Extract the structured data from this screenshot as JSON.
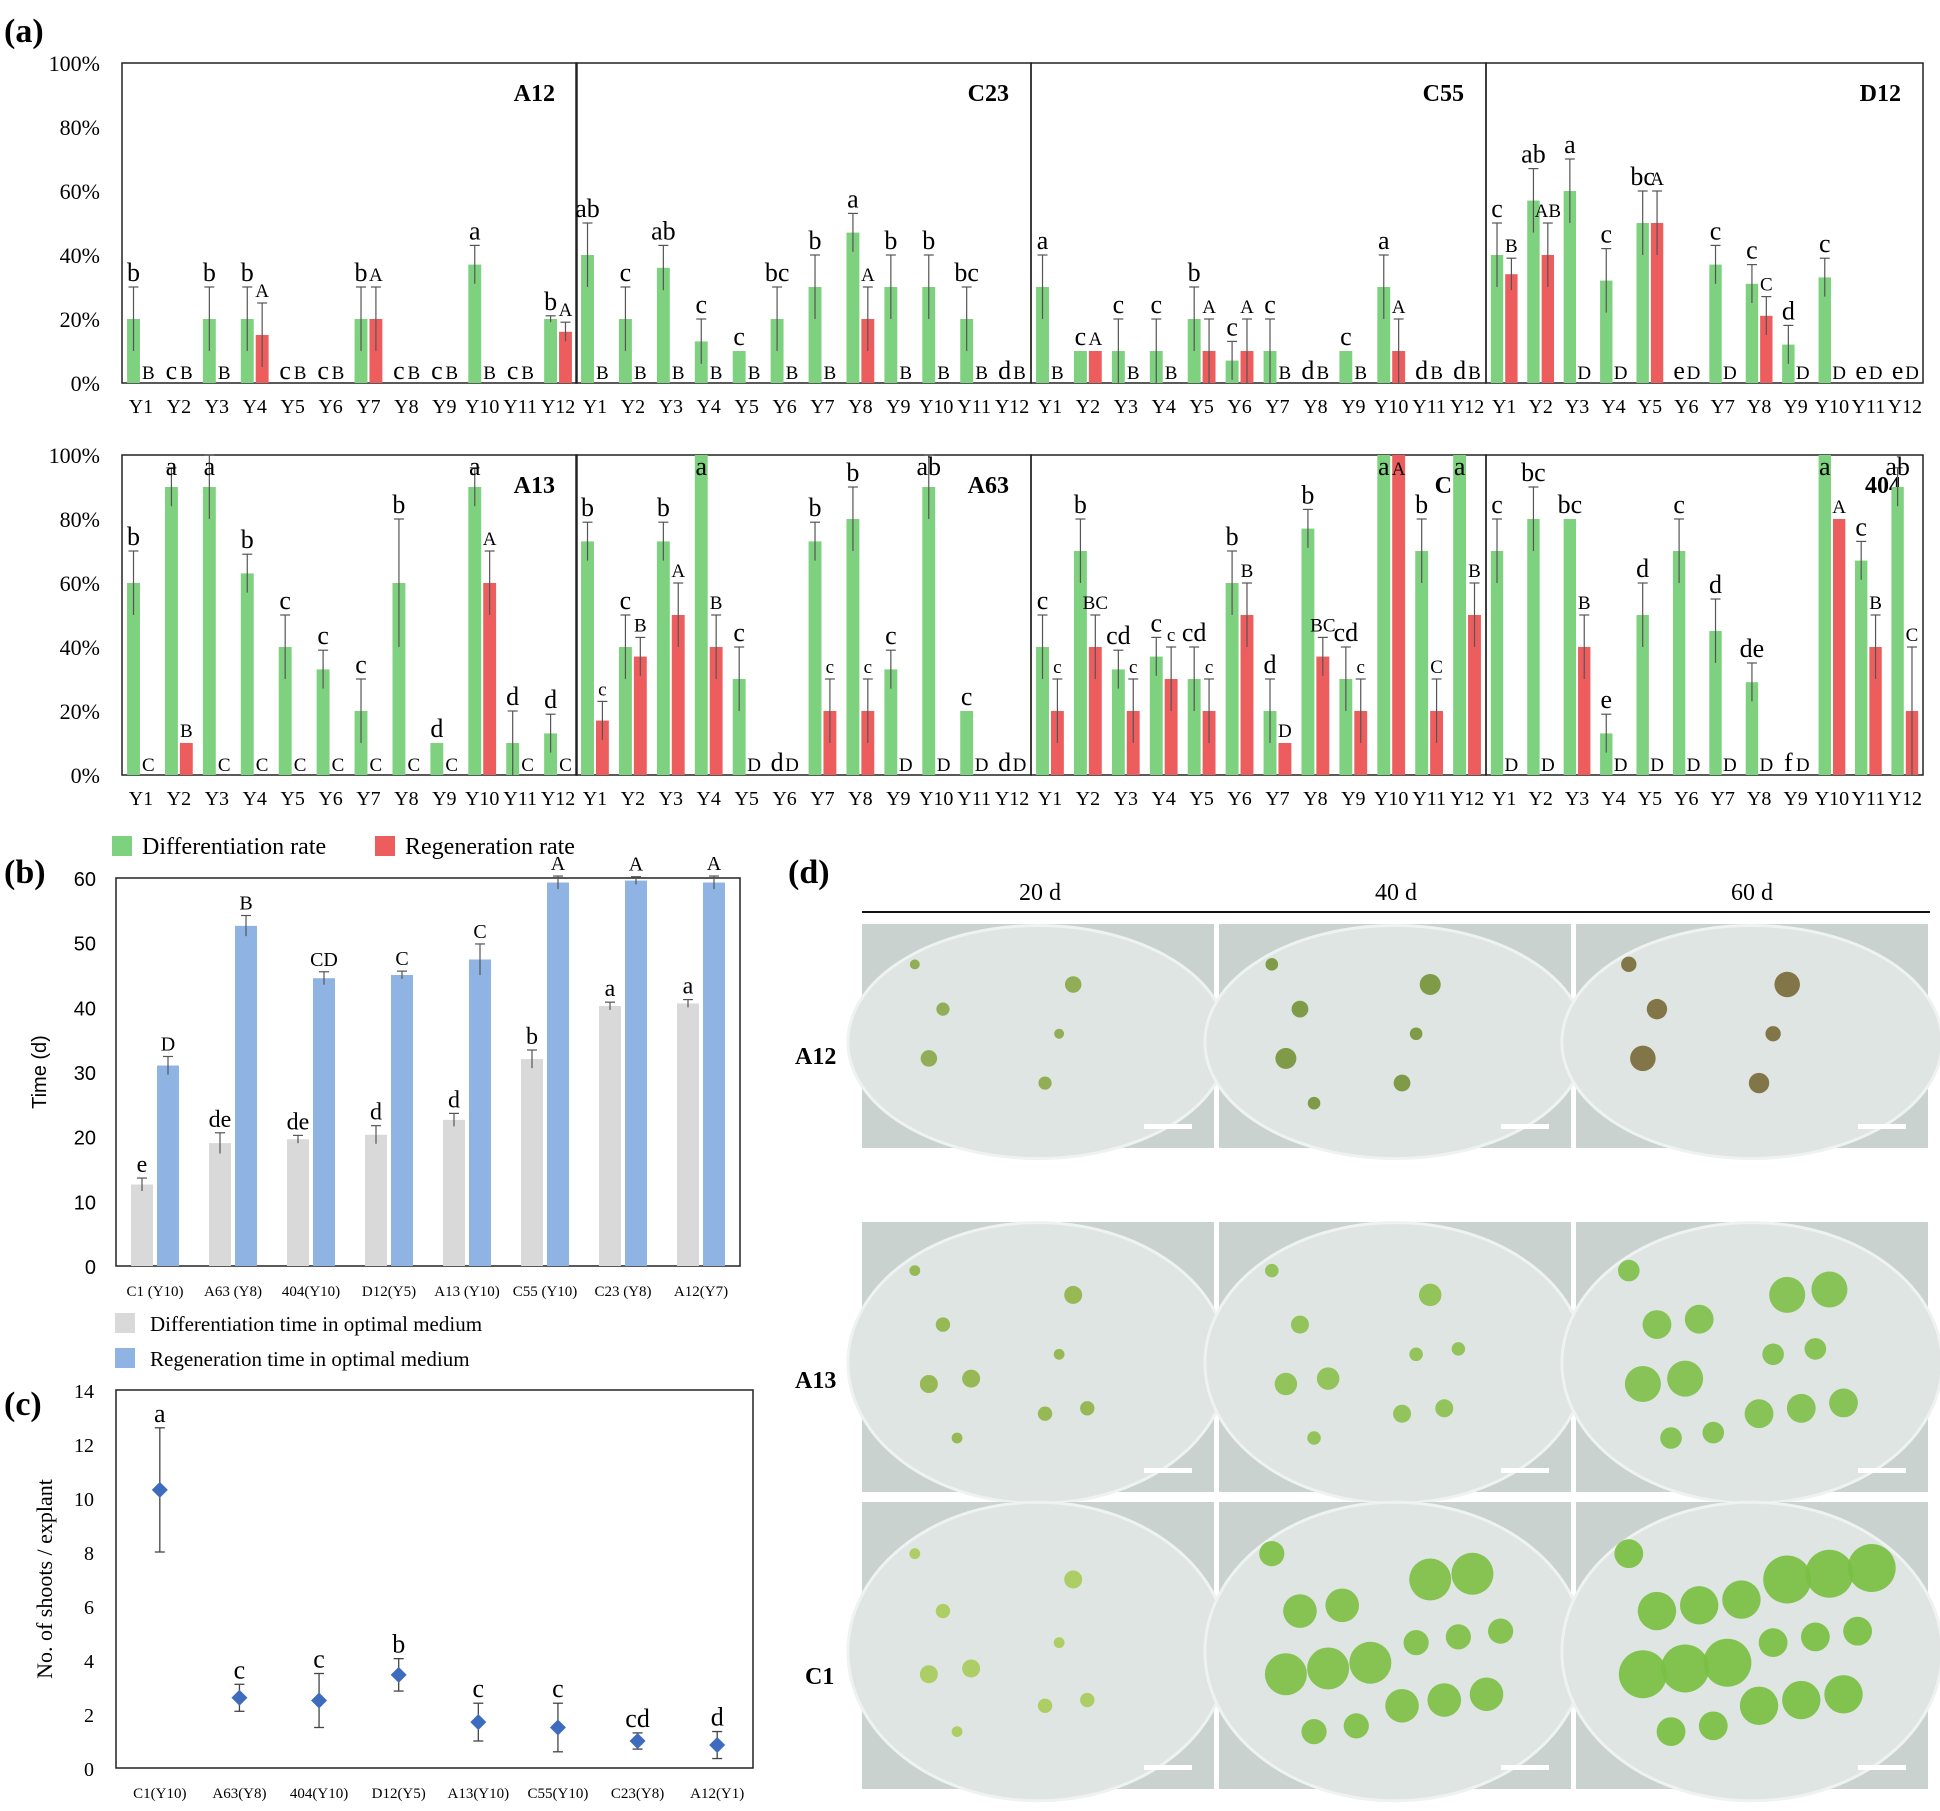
{
  "panel_labels": [
    "(a)",
    "(b)",
    "(c)",
    "(d)"
  ],
  "legend_a": {
    "differentiation": "Differentiation rate",
    "regeneration": "Regeneration  rate"
  },
  "legend_b": {
    "differentiation": "Differentiation time in optimal medium",
    "regeneration": "Regeneration time in optimal medium"
  },
  "colors": {
    "green": "#7ed17e",
    "red": "#ee5d5d",
    "gray": "#d9d9d9",
    "blue": "#8fb3e3",
    "diamond": "#3d6cbf"
  },
  "photo_panel": {
    "columns": [
      "20 d",
      "40 d",
      "60 d"
    ],
    "rows": [
      "A12",
      "A13",
      "C1"
    ]
  },
  "chart_data": [
    {
      "type": "bar",
      "panel": "a",
      "title": "A12",
      "categories": [
        "Y1",
        "Y2",
        "Y3",
        "Y4",
        "Y5",
        "Y6",
        "Y7",
        "Y8",
        "Y9",
        "Y10",
        "Y11",
        "Y12"
      ],
      "ylim": [
        0,
        100
      ],
      "yticks": [
        "0%",
        "20%",
        "40%",
        "60%",
        "80%",
        "100%"
      ],
      "series": [
        {
          "name": "Differentiation rate",
          "values": [
            20,
            0,
            20,
            20,
            0,
            0,
            20,
            0,
            0,
            37,
            0,
            20
          ],
          "errors": [
            10,
            0,
            10,
            10,
            0,
            0,
            10,
            0,
            0,
            6,
            0,
            1
          ],
          "labels": [
            "b",
            "c",
            "b",
            "b",
            "c",
            "c",
            "b",
            "c",
            "c",
            "a",
            "c",
            "b"
          ]
        },
        {
          "name": "Regeneration  rate",
          "values": [
            0,
            0,
            0,
            15,
            0,
            0,
            20,
            0,
            0,
            0,
            0,
            16
          ],
          "errors": [
            0,
            0,
            0,
            10,
            0,
            0,
            10,
            0,
            0,
            0,
            0,
            3
          ],
          "labels": [
            "B",
            "B",
            "B",
            "A",
            "B",
            "B",
            "A",
            "B",
            "B",
            "B",
            "B",
            "A"
          ]
        }
      ]
    },
    {
      "type": "bar",
      "panel": "a",
      "title": "C23",
      "categories": [
        "Y1",
        "Y2",
        "Y3",
        "Y4",
        "Y5",
        "Y6",
        "Y7",
        "Y8",
        "Y9",
        "Y10",
        "Y11",
        "Y12"
      ],
      "ylim": [
        0,
        100
      ],
      "yticks": [
        "0%",
        "20%",
        "40%",
        "60%",
        "80%",
        "100%"
      ],
      "series": [
        {
          "name": "Differentiation rate",
          "values": [
            40,
            20,
            36,
            13,
            10,
            20,
            30,
            47,
            30,
            30,
            20,
            0
          ],
          "errors": [
            10,
            10,
            7,
            7,
            0,
            10,
            10,
            6,
            10,
            10,
            10,
            0
          ],
          "labels": [
            "ab",
            "c",
            "ab",
            "c",
            "c",
            "bc",
            "b",
            "a",
            "b",
            "b",
            "bc",
            "d"
          ]
        },
        {
          "name": "Regeneration  rate",
          "values": [
            0,
            0,
            0,
            0,
            0,
            0,
            0,
            20,
            0,
            0,
            0,
            0
          ],
          "errors": [
            0,
            0,
            0,
            0,
            0,
            0,
            0,
            10,
            0,
            0,
            0,
            0
          ],
          "labels": [
            "B",
            "B",
            "B",
            "B",
            "B",
            "B",
            "B",
            "A",
            "B",
            "B",
            "B",
            "B"
          ]
        }
      ]
    },
    {
      "type": "bar",
      "panel": "a",
      "title": "C55",
      "categories": [
        "Y1",
        "Y2",
        "Y3",
        "Y4",
        "Y5",
        "Y6",
        "Y7",
        "Y8",
        "Y9",
        "Y10",
        "Y11",
        "Y12"
      ],
      "ylim": [
        0,
        100
      ],
      "yticks": [
        "0%",
        "20%",
        "40%",
        "60%",
        "80%",
        "100%"
      ],
      "series": [
        {
          "name": "Differentiation rate",
          "values": [
            30,
            10,
            10,
            10,
            20,
            7,
            10,
            0,
            10,
            30,
            0,
            0
          ],
          "errors": [
            10,
            0,
            10,
            10,
            10,
            6,
            10,
            0,
            0,
            10,
            0,
            0
          ],
          "labels": [
            "a",
            "c",
            "c",
            "c",
            "b",
            "c",
            "c",
            "d",
            "c",
            "a",
            "d",
            "d"
          ]
        },
        {
          "name": "Regeneration  rate",
          "values": [
            0,
            10,
            0,
            0,
            10,
            10,
            0,
            0,
            0,
            10,
            0,
            0
          ],
          "errors": [
            0,
            0,
            0,
            0,
            10,
            10,
            0,
            0,
            0,
            10,
            0,
            0
          ],
          "labels": [
            "B",
            "A",
            "B",
            "B",
            "A",
            "A",
            "B",
            "B",
            "B",
            "A",
            "B",
            "B"
          ]
        }
      ]
    },
    {
      "type": "bar",
      "panel": "a",
      "title": "D12",
      "categories": [
        "Y1",
        "Y2",
        "Y3",
        "Y4",
        "Y5",
        "Y6",
        "Y7",
        "Y8",
        "Y9",
        "Y10",
        "Y11",
        "Y12"
      ],
      "ylim": [
        0,
        100
      ],
      "yticks": [
        "0%",
        "20%",
        "40%",
        "60%",
        "80%",
        "100%"
      ],
      "series": [
        {
          "name": "Differentiation rate",
          "values": [
            40,
            57,
            60,
            32,
            50,
            0,
            37,
            31,
            12,
            33,
            0,
            0
          ],
          "errors": [
            10,
            10,
            10,
            10,
            10,
            0,
            6,
            6,
            6,
            6,
            0,
            0
          ],
          "labels": [
            "c",
            "ab",
            "a",
            "c",
            "bc",
            "e",
            "c",
            "c",
            "d",
            "c",
            "e",
            "e"
          ]
        },
        {
          "name": "Regeneration  rate",
          "values": [
            34,
            40,
            0,
            0,
            50,
            0,
            0,
            21,
            0,
            0,
            0,
            0
          ],
          "errors": [
            5,
            10,
            0,
            0,
            10,
            0,
            0,
            6,
            0,
            0,
            0,
            0
          ],
          "labels": [
            "B",
            "AB",
            "D",
            "D",
            "A",
            "D",
            "D",
            "C",
            "D",
            "D",
            "D",
            "D"
          ]
        }
      ]
    },
    {
      "type": "bar",
      "panel": "a",
      "title": "A13",
      "categories": [
        "Y1",
        "Y2",
        "Y3",
        "Y4",
        "Y5",
        "Y6",
        "Y7",
        "Y8",
        "Y9",
        "Y10",
        "Y11",
        "Y12"
      ],
      "ylim": [
        0,
        100
      ],
      "yticks": [
        "0%",
        "20%",
        "40%",
        "60%",
        "80%",
        "100%"
      ],
      "series": [
        {
          "name": "Differentiation rate",
          "values": [
            60,
            90,
            90,
            63,
            40,
            33,
            20,
            60,
            10,
            90,
            10,
            13
          ],
          "errors": [
            10,
            6,
            10,
            6,
            10,
            6,
            10,
            20,
            0,
            6,
            10,
            6
          ],
          "labels": [
            "b",
            "a",
            "a",
            "b",
            "c",
            "c",
            "c",
            "b",
            "d",
            "a",
            "d",
            "d"
          ]
        },
        {
          "name": "Regeneration  rate",
          "values": [
            0,
            10,
            0,
            0,
            0,
            0,
            0,
            0,
            0,
            60,
            0,
            0
          ],
          "errors": [
            0,
            0,
            0,
            0,
            0,
            0,
            0,
            0,
            0,
            10,
            0,
            0
          ],
          "labels": [
            "C",
            "B",
            "C",
            "C",
            "C",
            "C",
            "C",
            "C",
            "C",
            "A",
            "C",
            "C"
          ]
        }
      ]
    },
    {
      "type": "bar",
      "panel": "a",
      "title": "A63",
      "categories": [
        "Y1",
        "Y2",
        "Y3",
        "Y4",
        "Y5",
        "Y6",
        "Y7",
        "Y8",
        "Y9",
        "Y10",
        "Y11",
        "Y12"
      ],
      "ylim": [
        0,
        100
      ],
      "yticks": [
        "0%",
        "20%",
        "40%",
        "60%",
        "80%",
        "100%"
      ],
      "series": [
        {
          "name": "Differentiation rate",
          "values": [
            73,
            40,
            73,
            100,
            30,
            0,
            73,
            80,
            33,
            90,
            20,
            0
          ],
          "errors": [
            6,
            10,
            6,
            0,
            10,
            0,
            6,
            10,
            6,
            10,
            0,
            0
          ],
          "labels": [
            "b",
            "c",
            "b",
            "a",
            "c",
            "d",
            "b",
            "b",
            "c",
            "ab",
            "c",
            "d"
          ]
        },
        {
          "name": "Regeneration  rate",
          "values": [
            17,
            37,
            50,
            40,
            0,
            0,
            20,
            20,
            0,
            0,
            0,
            0
          ],
          "errors": [
            6,
            6,
            10,
            10,
            0,
            0,
            10,
            10,
            0,
            0,
            0,
            0
          ],
          "labels": [
            "c",
            "B",
            "A",
            "B",
            "D",
            "D",
            "c",
            "c",
            "D",
            "D",
            "D",
            "D"
          ]
        }
      ]
    },
    {
      "type": "bar",
      "panel": "a",
      "title": "C1",
      "categories": [
        "Y1",
        "Y2",
        "Y3",
        "Y4",
        "Y5",
        "Y6",
        "Y7",
        "Y8",
        "Y9",
        "Y10",
        "Y11",
        "Y12"
      ],
      "ylim": [
        0,
        100
      ],
      "yticks": [
        "0%",
        "20%",
        "40%",
        "60%",
        "80%",
        "100%"
      ],
      "series": [
        {
          "name": "Differentiation rate",
          "values": [
            40,
            70,
            33,
            37,
            30,
            60,
            20,
            77,
            30,
            100,
            70,
            100
          ],
          "errors": [
            10,
            10,
            6,
            6,
            10,
            10,
            10,
            6,
            10,
            0,
            10,
            0
          ],
          "labels": [
            "c",
            "b",
            "cd",
            "c",
            "cd",
            "b",
            "d",
            "b",
            "cd",
            "a",
            "b",
            "a"
          ]
        },
        {
          "name": "Regeneration  rate",
          "values": [
            20,
            40,
            20,
            30,
            20,
            50,
            10,
            37,
            20,
            100,
            20,
            50
          ],
          "errors": [
            10,
            10,
            10,
            10,
            10,
            10,
            0,
            6,
            10,
            0,
            10,
            10
          ],
          "labels": [
            "c",
            "BC",
            "c",
            "c",
            "c",
            "B",
            "D",
            "BC",
            "c",
            "A",
            "C",
            "B"
          ]
        }
      ]
    },
    {
      "type": "bar",
      "panel": "a",
      "title": "404",
      "categories": [
        "Y1",
        "Y2",
        "Y3",
        "Y4",
        "Y5",
        "Y6",
        "Y7",
        "Y8",
        "Y9",
        "Y10",
        "Y11",
        "Y12"
      ],
      "ylim": [
        0,
        100
      ],
      "yticks": [
        "0%",
        "20%",
        "40%",
        "60%",
        "80%",
        "100%"
      ],
      "series": [
        {
          "name": "Differentiation rate",
          "values": [
            70,
            80,
            80,
            13,
            50,
            70,
            45,
            29,
            0,
            100,
            67,
            90
          ],
          "errors": [
            10,
            10,
            0,
            6,
            10,
            10,
            10,
            6,
            0,
            0,
            6,
            6
          ],
          "labels": [
            "c",
            "bc",
            "bc",
            "e",
            "d",
            "c",
            "d",
            "de",
            "f",
            "a",
            "c",
            "ab"
          ]
        },
        {
          "name": "Regeneration  rate",
          "values": [
            0,
            0,
            40,
            0,
            0,
            0,
            0,
            0,
            0,
            80,
            40,
            20
          ],
          "errors": [
            0,
            0,
            10,
            0,
            0,
            0,
            0,
            0,
            0,
            0,
            10,
            20
          ],
          "labels": [
            "D",
            "D",
            "B",
            "D",
            "D",
            "D",
            "D",
            "D",
            "D",
            "A",
            "B",
            "C"
          ]
        }
      ]
    },
    {
      "type": "bar",
      "panel": "b",
      "categories": [
        "C1 (Y10)",
        "A63 (Y8)",
        "404(Y10)",
        "D12(Y5)",
        "A13 (Y10)",
        "C55 (Y10)",
        "C23 (Y8)",
        "A12(Y7)"
      ],
      "ylabel": "Time (d)",
      "ylim": [
        0,
        60
      ],
      "yticks": [
        0,
        10,
        20,
        30,
        40,
        50,
        60
      ],
      "series": [
        {
          "name": "Differentiation time in optimal medium",
          "values": [
            12.6,
            19,
            19.6,
            20.3,
            22.6,
            32,
            40.2,
            40.6
          ],
          "errors": [
            1,
            1.6,
            0.6,
            1.4,
            1,
            1.4,
            0.6,
            0.6
          ],
          "labels": [
            "e",
            "de",
            "de",
            "d",
            "d",
            "b",
            "a",
            "a"
          ]
        },
        {
          "name": "Regeneration time in optimal medium",
          "values": [
            31,
            52.6,
            44.5,
            45,
            47.4,
            59.3,
            59.6,
            59.3
          ],
          "errors": [
            1.4,
            1.6,
            1,
            0.6,
            2.4,
            1,
            0.6,
            1
          ],
          "labels": [
            "D",
            "B",
            "CD",
            "C",
            "C",
            "A",
            "A",
            "A"
          ]
        }
      ]
    },
    {
      "type": "scatter",
      "panel": "c",
      "categories": [
        "C1(Y10)",
        "A63(Y8)",
        "404(Y10)",
        "D12(Y5)",
        "A13(Y10)",
        "C55(Y10)",
        "C23(Y8)",
        "A12(Y1)"
      ],
      "ylabel": "No. of shoots / explant",
      "ylim": [
        0,
        14
      ],
      "yticks": [
        0,
        2,
        4,
        6,
        8,
        10,
        12,
        14
      ],
      "values": [
        10.3,
        2.6,
        2.5,
        3.45,
        1.7,
        1.5,
        1.0,
        0.85
      ],
      "errors": [
        2.3,
        0.5,
        1.0,
        0.6,
        0.7,
        0.9,
        0.3,
        0.5
      ],
      "labels": [
        "a",
        "c",
        "c",
        "b",
        "c",
        "c",
        "cd",
        "d"
      ]
    }
  ]
}
